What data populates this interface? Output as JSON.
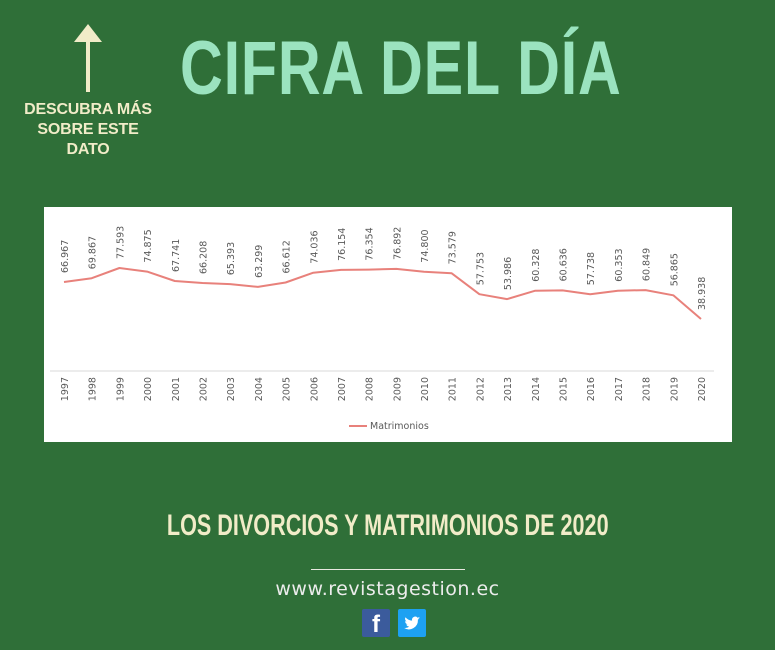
{
  "hint": {
    "line1": "DESCUBRA MÁS",
    "line2": "SOBRE ESTE DATO"
  },
  "headline": "CIFRA DEL DÍA",
  "subtitle": "LOS DIVORCIOS Y MATRIMONIOS DE 2020",
  "website": "www.revistagestion.ec",
  "social": {
    "facebook_icon": "facebook-icon",
    "twitter_icon": "twitter-icon"
  },
  "colors": {
    "background": "#2f6f38",
    "headline": "#9be3bf",
    "text": "#f1ecc8",
    "line": "#e8817b"
  },
  "chart_data": {
    "type": "line",
    "categories": [
      "1997",
      "1998",
      "1999",
      "2000",
      "2001",
      "2002",
      "2003",
      "2004",
      "2005",
      "2006",
      "2007",
      "2008",
      "2009",
      "2010",
      "2011",
      "2012",
      "2013",
      "2014",
      "2015",
      "2016",
      "2017",
      "2018",
      "2019",
      "2020"
    ],
    "series": [
      {
        "name": "Matrimonios",
        "values": [
          66967,
          69867,
          77593,
          74875,
          67741,
          66208,
          65393,
          63299,
          66612,
          74036,
          76154,
          76354,
          76892,
          74800,
          73579,
          57753,
          53986,
          60328,
          60636,
          57738,
          60353,
          60849,
          56865,
          38938
        ],
        "labels": [
          "66.967",
          "69.867",
          "77.593",
          "74.875",
          "67.741",
          "66.208",
          "65.393",
          "63.299",
          "66.612",
          "74.036",
          "76.154",
          "76.354",
          "76.892",
          "74.800",
          "73.579",
          "57.753",
          "53.986",
          "60.328",
          "60.636",
          "57.738",
          "60.353",
          "60.849",
          "56.865",
          "38.938"
        ]
      }
    ],
    "legend_position": "bottom",
    "grid": false,
    "axis_line": "x"
  }
}
